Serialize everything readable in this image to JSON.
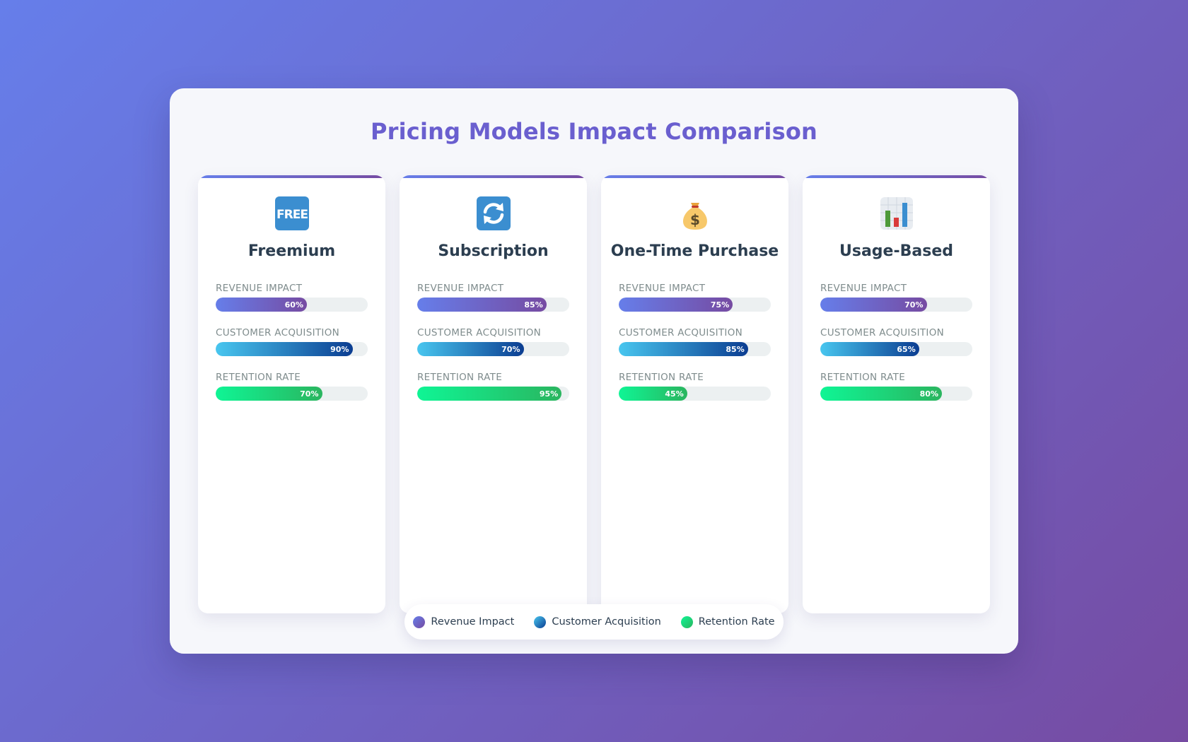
{
  "title": "Pricing Models Impact Comparison",
  "metric_labels": {
    "revenue": "Revenue Impact",
    "acquisition": "Customer Acquisition",
    "retention": "Retention Rate"
  },
  "models": [
    {
      "name": "Freemium",
      "icon": "free-icon",
      "revenue": 60,
      "acquisition": 90,
      "retention": 70,
      "revenue_text": "60%",
      "acquisition_text": "90%",
      "retention_text": "70%"
    },
    {
      "name": "Subscription",
      "icon": "refresh-icon",
      "revenue": 85,
      "acquisition": 70,
      "retention": 95,
      "revenue_text": "85%",
      "acquisition_text": "70%",
      "retention_text": "95%"
    },
    {
      "name": "One-Time Purchase",
      "icon": "money-bag-icon",
      "revenue": 75,
      "acquisition": 85,
      "retention": 45,
      "revenue_text": "75%",
      "acquisition_text": "85%",
      "retention_text": "45%"
    },
    {
      "name": "Usage-Based",
      "icon": "bar-chart-icon",
      "revenue": 70,
      "acquisition": 65,
      "retention": 80,
      "revenue_text": "70%",
      "acquisition_text": "65%",
      "retention_text": "80%"
    }
  ],
  "legend": [
    {
      "key": "revenue",
      "label": "Revenue Impact"
    },
    {
      "key": "acquisition",
      "label": "Customer Acquisition"
    },
    {
      "key": "retention",
      "label": "Retention Rate"
    }
  ],
  "colors": {
    "background_start": "#667eea",
    "background_end": "#764ba2",
    "title": "#6a5fcf",
    "revenue": "#6f64d8",
    "acquisition": "#1b6fb0",
    "retention": "#1fe08a"
  },
  "chart_data": {
    "type": "bar",
    "title": "Pricing Models Impact Comparison",
    "categories": [
      "Freemium",
      "Subscription",
      "One-Time Purchase",
      "Usage-Based"
    ],
    "series": [
      {
        "name": "Revenue Impact",
        "values": [
          60,
          85,
          75,
          70
        ]
      },
      {
        "name": "Customer Acquisition",
        "values": [
          90,
          70,
          85,
          65
        ]
      },
      {
        "name": "Retention Rate",
        "values": [
          70,
          95,
          45,
          80
        ]
      }
    ],
    "orientation": "horizontal",
    "unit": "%",
    "xlim": [
      0,
      100
    ],
    "legend_position": "bottom-center",
    "grid": false
  }
}
